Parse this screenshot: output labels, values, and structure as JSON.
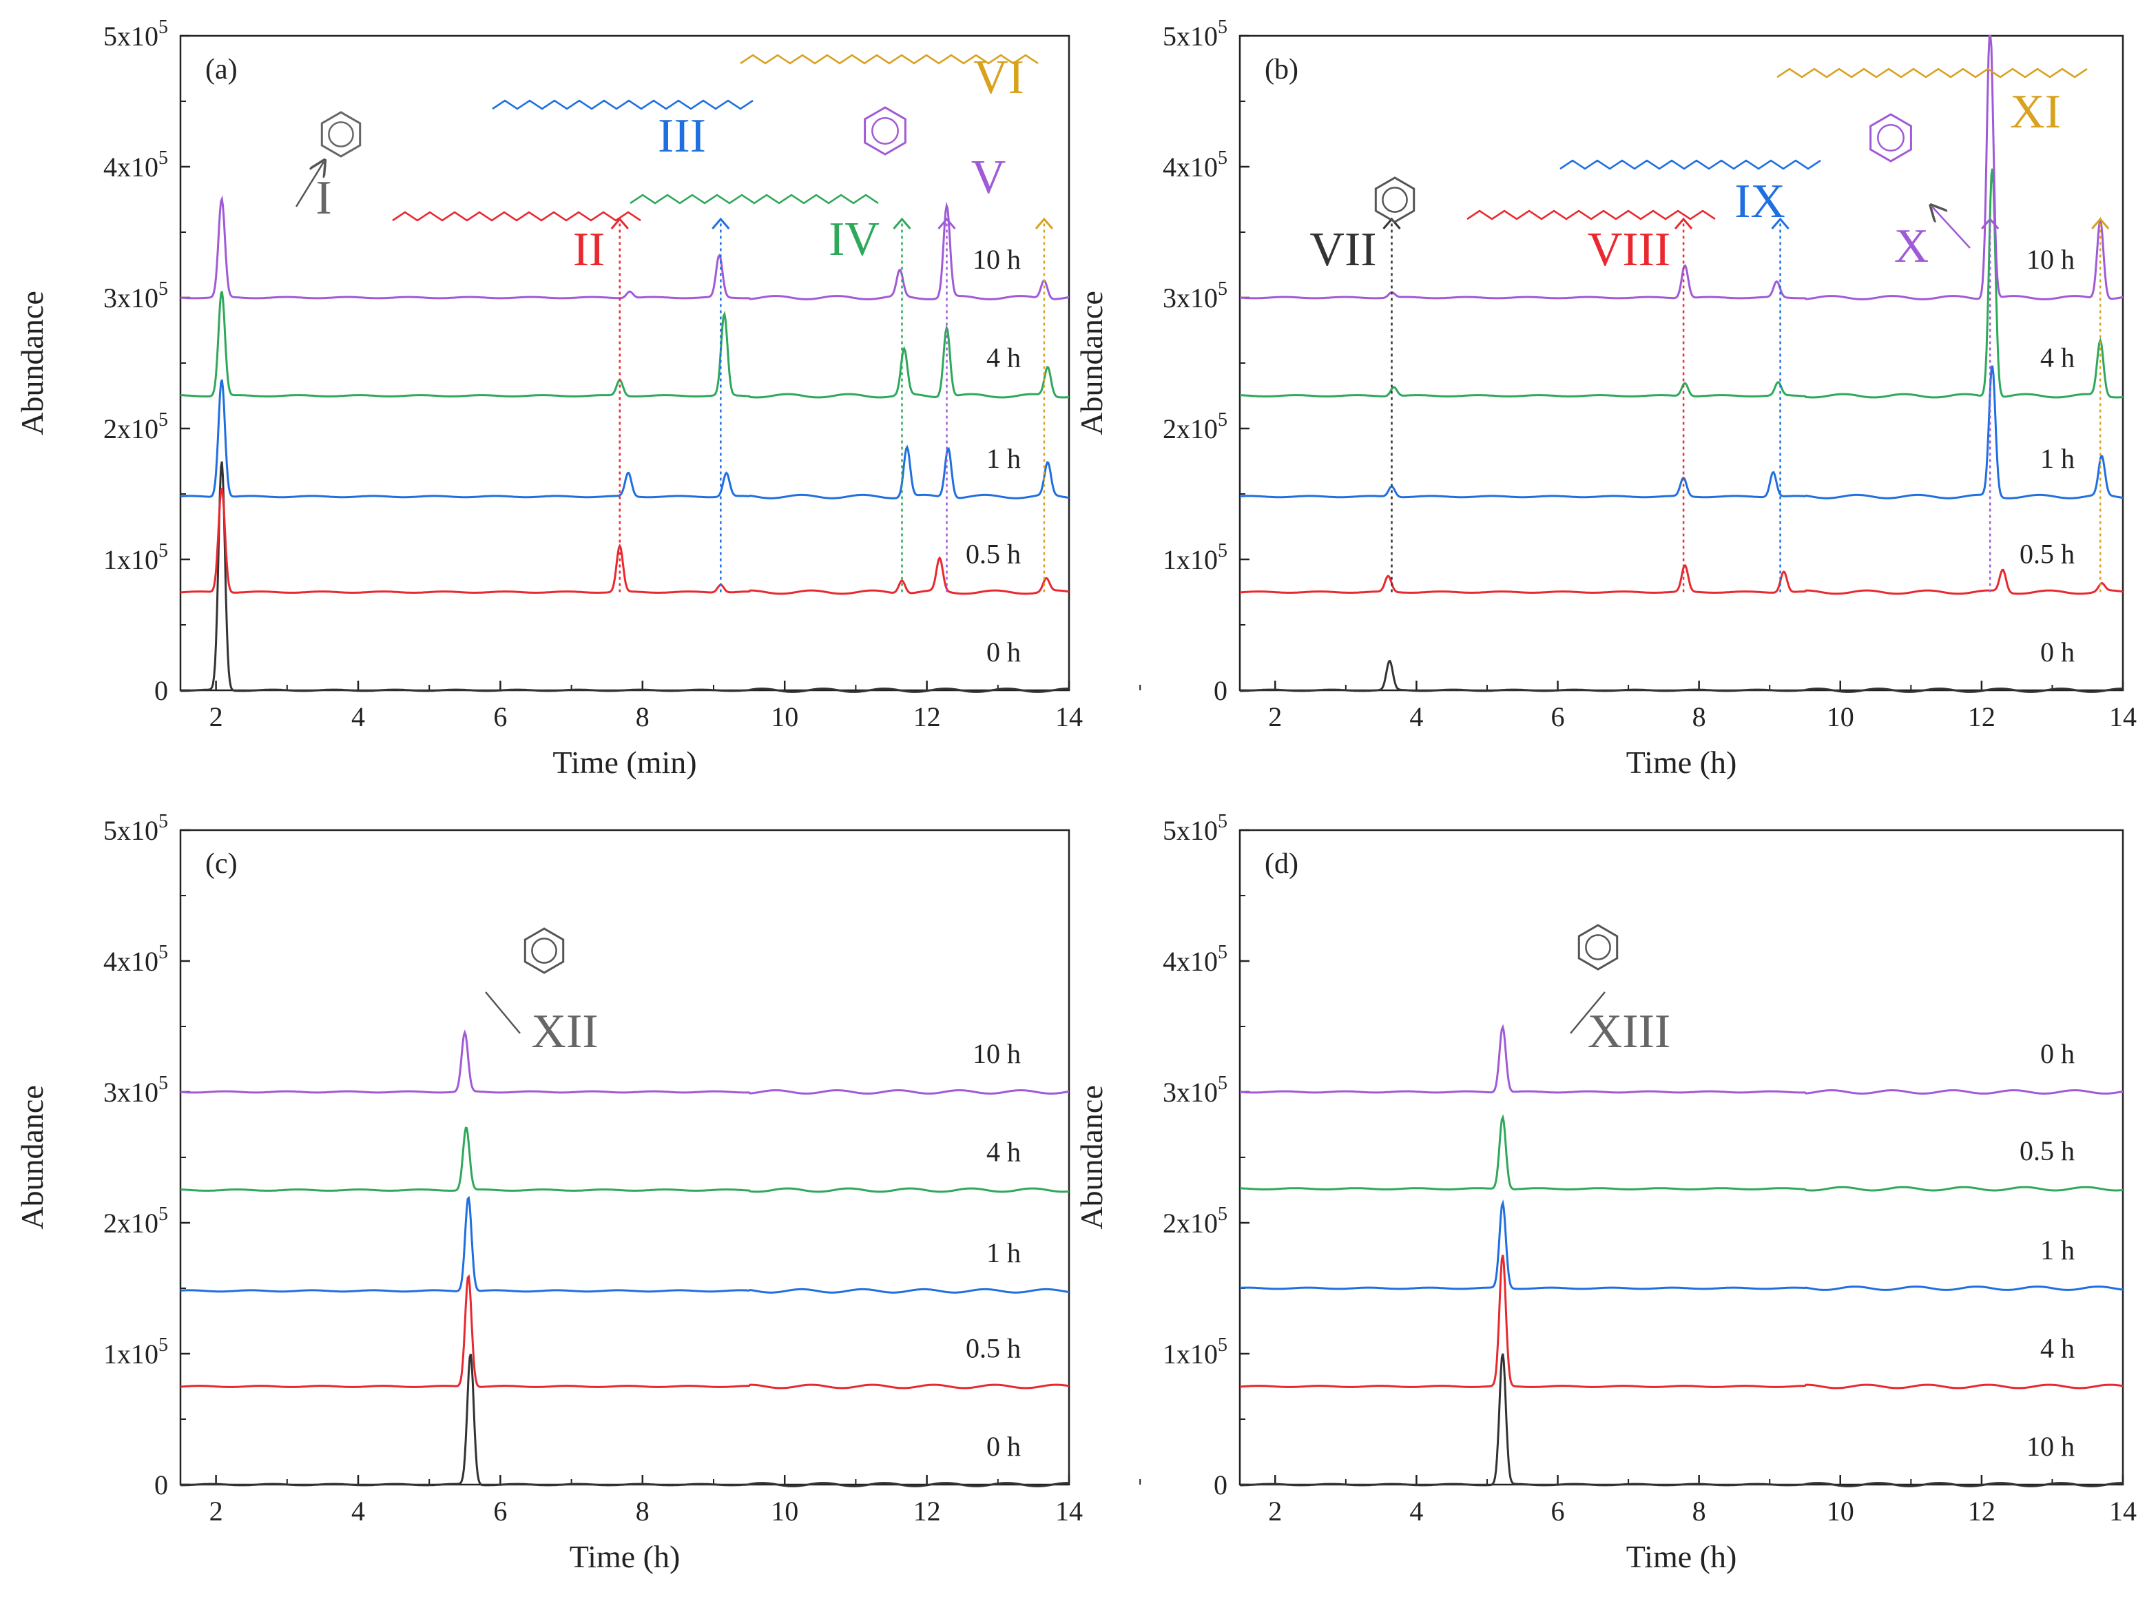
{
  "figure": {
    "description_colors": {
      "0h": "#333333",
      "0.5h": "#e8292f",
      "1h": "#1f6fe0",
      "4h": "#2ea85a",
      "10h": "#a05ad8",
      "benzene_label": "#666666",
      "fatty_gold": "#d8a21f"
    }
  },
  "chart_data": [
    {
      "type": "line",
      "panel": "(a)",
      "xlabel": "Time (min)",
      "ylabel": "Abundance",
      "xlim": [
        1.5,
        14
      ],
      "ylim": [
        0,
        500000
      ],
      "xticks": [
        "2",
        "4",
        "6",
        "8",
        "10",
        "12",
        "14"
      ],
      "yticks": [
        "0",
        "1x10^5",
        "2x10^5",
        "3x10^5",
        "4x10^5",
        "5x10^5"
      ],
      "ytick_base": "x10",
      "ytick_exp": "5",
      "series": [
        {
          "name": "0 h",
          "label": "0 h",
          "offset": 0,
          "color": "#333333",
          "peaks": [
            [
              2.08,
              175000
            ]
          ]
        },
        {
          "name": "0.5 h",
          "label": "0.5 h",
          "offset": 75000,
          "color": "#e8292f",
          "peaks": [
            [
              2.08,
              80000
            ],
            [
              7.68,
              35000
            ],
            [
              9.1,
              6000
            ],
            [
              11.65,
              10000
            ],
            [
              12.18,
              25000
            ],
            [
              13.68,
              10000
            ]
          ]
        },
        {
          "name": "1 h",
          "label": "1 h",
          "offset": 148000,
          "color": "#1f6fe0",
          "peaks": [
            [
              2.08,
              90000
            ],
            [
              7.8,
              18000
            ],
            [
              9.18,
              18000
            ],
            [
              11.72,
              38000
            ],
            [
              12.3,
              38000
            ],
            [
              13.7,
              25000
            ]
          ]
        },
        {
          "name": "4 h",
          "label": "4 h",
          "offset": 225000,
          "color": "#2ea85a",
          "peaks": [
            [
              2.08,
              80000
            ],
            [
              7.68,
              12000
            ],
            [
              9.15,
              62000
            ],
            [
              11.68,
              35000
            ],
            [
              12.28,
              53000
            ],
            [
              13.7,
              22000
            ]
          ]
        },
        {
          "name": "10 h",
          "label": "10 h",
          "offset": 300000,
          "color": "#a05ad8",
          "peaks": [
            [
              2.08,
              75000
            ],
            [
              7.82,
              5000
            ],
            [
              9.08,
              32000
            ],
            [
              11.62,
              20000
            ],
            [
              12.28,
              70000
            ],
            [
              13.65,
              14000
            ]
          ]
        }
      ],
      "annotations": [
        {
          "id": "I",
          "text": "I",
          "color": "#666666",
          "x": 2.08
        },
        {
          "id": "II",
          "text": "II",
          "color": "#e8292f",
          "x": 7.68
        },
        {
          "id": "III",
          "text": "III",
          "color": "#1f6fe0",
          "x": 9.1
        },
        {
          "id": "IV",
          "text": "IV",
          "color": "#2ea85a",
          "x": 11.65
        },
        {
          "id": "V",
          "text": "V",
          "color": "#a05ad8",
          "x": 12.28
        },
        {
          "id": "VI",
          "text": "VI",
          "color": "#d8a21f",
          "x": 13.65
        }
      ]
    },
    {
      "type": "line",
      "panel": "(b)",
      "xlabel": "Time (h)",
      "ylabel": "Abundance",
      "xlim": [
        1.5,
        14
      ],
      "ylim": [
        0,
        500000
      ],
      "xticks": [
        "2",
        "4",
        "6",
        "8",
        "10",
        "12",
        "14"
      ],
      "yticks": [
        "0",
        "1x10^5",
        "2x10^5",
        "3x10^5",
        "4x10^5",
        "5x10^5"
      ],
      "series": [
        {
          "name": "0 h",
          "label": "0 h",
          "offset": 0,
          "color": "#333333",
          "peaks": [
            [
              3.62,
              22000
            ]
          ]
        },
        {
          "name": "0.5 h",
          "label": "0.5 h",
          "offset": 75000,
          "color": "#e8292f",
          "peaks": [
            [
              3.6,
              12000
            ],
            [
              7.8,
              20000
            ],
            [
              9.2,
              16000
            ],
            [
              12.3,
              17000
            ],
            [
              13.7,
              6000
            ]
          ]
        },
        {
          "name": "1 h",
          "label": "1 h",
          "offset": 148000,
          "color": "#1f6fe0",
          "peaks": [
            [
              3.65,
              8000
            ],
            [
              7.78,
              14000
            ],
            [
              9.05,
              19000
            ],
            [
              12.15,
              100000
            ],
            [
              13.7,
              30000
            ]
          ]
        },
        {
          "name": "4 h",
          "label": "4 h",
          "offset": 225000,
          "color": "#2ea85a",
          "peaks": [
            [
              3.68,
              7000
            ],
            [
              7.8,
              10000
            ],
            [
              9.12,
              10000
            ],
            [
              12.15,
              175000
            ],
            [
              13.68,
              42000
            ]
          ]
        },
        {
          "name": "10 h",
          "label": "10 h",
          "offset": 300000,
          "color": "#a05ad8",
          "peaks": [
            [
              3.65,
              4000
            ],
            [
              7.8,
              25000
            ],
            [
              9.1,
              12000
            ],
            [
              12.12,
              210000
            ],
            [
              13.68,
              60000
            ]
          ]
        }
      ],
      "annotations": [
        {
          "id": "VII",
          "text": "VII",
          "color": "#333333",
          "x": 3.65
        },
        {
          "id": "VIII",
          "text": "VIII",
          "color": "#e8292f",
          "x": 7.78
        },
        {
          "id": "IX",
          "text": "IX",
          "color": "#1f6fe0",
          "x": 9.15
        },
        {
          "id": "X",
          "text": "X",
          "color": "#a05ad8",
          "x": 12.12
        },
        {
          "id": "XI",
          "text": "XI",
          "color": "#d8a21f",
          "x": 13.68
        }
      ]
    },
    {
      "type": "line",
      "panel": "(c)",
      "xlabel": "Time (h)",
      "ylabel": "Abundance",
      "xlim": [
        1.5,
        14
      ],
      "ylim": [
        0,
        500000
      ],
      "xticks": [
        "2",
        "4",
        "6",
        "8",
        "10",
        "12",
        "14"
      ],
      "yticks": [
        "0",
        "1x10^5",
        "2x10^5",
        "3x10^5",
        "4x10^5",
        "5x10^5"
      ],
      "series": [
        {
          "name": "0 h",
          "label": "0 h",
          "offset": 0,
          "color": "#333333",
          "peaks": [
            [
              5.58,
              100000
            ]
          ]
        },
        {
          "name": "0.5 h",
          "label": "0.5 h",
          "offset": 75000,
          "color": "#e8292f",
          "peaks": [
            [
              5.55,
              85000
            ]
          ]
        },
        {
          "name": "1 h",
          "label": "1 h",
          "offset": 148000,
          "color": "#1f6fe0",
          "peaks": [
            [
              5.55,
              72000
            ]
          ]
        },
        {
          "name": "4 h",
          "label": "4 h",
          "offset": 225000,
          "color": "#2ea85a",
          "peaks": [
            [
              5.52,
              48000
            ]
          ]
        },
        {
          "name": "10 h",
          "label": "10 h",
          "offset": 300000,
          "color": "#a05ad8",
          "peaks": [
            [
              5.5,
              45000
            ]
          ]
        }
      ],
      "annotations": [
        {
          "id": "XII",
          "text": "XII",
          "color": "#666666",
          "x": 5.55
        }
      ]
    },
    {
      "type": "line",
      "panel": "(d)",
      "xlabel": "Time (h)",
      "ylabel": "Abundance",
      "xlim": [
        1.5,
        14
      ],
      "ylim": [
        0,
        500000
      ],
      "xticks": [
        "2",
        "4",
        "6",
        "8",
        "10",
        "12",
        "14"
      ],
      "yticks": [
        "0",
        "1x10^5",
        "2x10^5",
        "3x10^5",
        "4x10^5",
        "5x10^5"
      ],
      "series": [
        {
          "name": "10 h",
          "label": "10 h",
          "offset": 0,
          "color": "#333333",
          "peaks": [
            [
              5.22,
              100000
            ]
          ]
        },
        {
          "name": "4 h",
          "label": "4 h",
          "offset": 75000,
          "color": "#e8292f",
          "peaks": [
            [
              5.22,
              100000
            ]
          ]
        },
        {
          "name": "1 h",
          "label": "1 h",
          "offset": 150000,
          "color": "#1f6fe0",
          "peaks": [
            [
              5.22,
              65000
            ]
          ]
        },
        {
          "name": "0.5 h",
          "label": "0.5 h",
          "offset": 226000,
          "color": "#2ea85a",
          "peaks": [
            [
              5.22,
              55000
            ]
          ]
        },
        {
          "name": "0 h",
          "label": "0 h",
          "offset": 300000,
          "color": "#a05ad8",
          "peaks": [
            [
              5.22,
              50000
            ]
          ]
        }
      ],
      "annotations": [
        {
          "id": "XIII",
          "text": "XIII",
          "color": "#666666",
          "x": 5.22
        }
      ]
    }
  ]
}
